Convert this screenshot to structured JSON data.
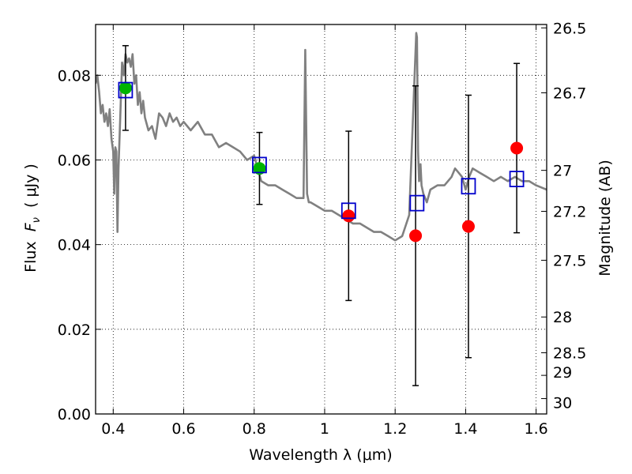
{
  "chart_data": {
    "type": "scatter",
    "title": "",
    "xlabel": "Wavelength  λ (μm)",
    "ylabel": "Flux  F_ν  ( μJy )",
    "ylabel_parts": {
      "prefix": "Flux  ",
      "symbol": "F",
      "subscript": "ν",
      "unit": "  ( μJy )"
    },
    "y2label": "Magnitude (AB)",
    "xlim": [
      0.35,
      1.63
    ],
    "ylim": [
      0.0,
      0.092
    ],
    "grid": true,
    "x_ticks": [
      0.4,
      0.6,
      0.8,
      1.0,
      1.2,
      1.4,
      1.6
    ],
    "x_tick_labels": [
      "0.4",
      "0.6",
      "0.8",
      "1",
      "1.2",
      "1.4",
      "1.6"
    ],
    "y_ticks": [
      0.0,
      0.02,
      0.04,
      0.06,
      0.08
    ],
    "y_tick_labels": [
      "0.00",
      "0.02",
      "0.04",
      "0.06",
      "0.08"
    ],
    "mag_ticks": [
      26.5,
      26.7,
      27,
      27.2,
      27.5,
      28,
      28.5,
      29,
      30
    ],
    "mag_tick_labels": [
      "26.5",
      "26.7",
      "27",
      "27.2",
      "27.5",
      "28",
      "28.5",
      "29",
      "30"
    ],
    "series": [
      {
        "name": "model_sed",
        "style": "line",
        "color": "#808080",
        "x": [
          0.35,
          0.355,
          0.36,
          0.365,
          0.37,
          0.375,
          0.38,
          0.385,
          0.39,
          0.395,
          0.4,
          0.403,
          0.406,
          0.409,
          0.412,
          0.415,
          0.42,
          0.425,
          0.43,
          0.435,
          0.44,
          0.445,
          0.45,
          0.455,
          0.46,
          0.465,
          0.47,
          0.475,
          0.48,
          0.485,
          0.49,
          0.5,
          0.51,
          0.52,
          0.53,
          0.54,
          0.55,
          0.56,
          0.57,
          0.58,
          0.59,
          0.6,
          0.62,
          0.64,
          0.66,
          0.68,
          0.7,
          0.72,
          0.74,
          0.76,
          0.78,
          0.8,
          0.82,
          0.84,
          0.86,
          0.88,
          0.9,
          0.92,
          0.94,
          0.945,
          0.95,
          0.955,
          0.96,
          0.98,
          1.0,
          1.02,
          1.04,
          1.06,
          1.08,
          1.1,
          1.12,
          1.14,
          1.16,
          1.18,
          1.2,
          1.22,
          1.24,
          1.26,
          1.262,
          1.265,
          1.268,
          1.272,
          1.275,
          1.28,
          1.29,
          1.3,
          1.32,
          1.34,
          1.36,
          1.37,
          1.38,
          1.39,
          1.4,
          1.41,
          1.42,
          1.44,
          1.46,
          1.48,
          1.5,
          1.52,
          1.54,
          1.56,
          1.58,
          1.6,
          1.63
        ],
        "y": [
          0.078,
          0.08,
          0.076,
          0.071,
          0.073,
          0.069,
          0.071,
          0.068,
          0.072,
          0.065,
          0.062,
          0.052,
          0.063,
          0.062,
          0.043,
          0.058,
          0.07,
          0.083,
          0.08,
          0.085,
          0.083,
          0.084,
          0.082,
          0.085,
          0.078,
          0.08,
          0.073,
          0.076,
          0.071,
          0.074,
          0.07,
          0.067,
          0.068,
          0.065,
          0.071,
          0.07,
          0.068,
          0.071,
          0.069,
          0.07,
          0.068,
          0.069,
          0.067,
          0.069,
          0.066,
          0.066,
          0.063,
          0.064,
          0.063,
          0.062,
          0.06,
          0.061,
          0.055,
          0.054,
          0.054,
          0.053,
          0.052,
          0.051,
          0.051,
          0.086,
          0.052,
          0.05,
          0.05,
          0.049,
          0.048,
          0.048,
          0.047,
          0.046,
          0.045,
          0.045,
          0.044,
          0.043,
          0.043,
          0.042,
          0.041,
          0.042,
          0.047,
          0.09,
          0.089,
          0.062,
          0.055,
          0.059,
          0.054,
          0.052,
          0.05,
          0.053,
          0.054,
          0.054,
          0.056,
          0.058,
          0.057,
          0.056,
          0.053,
          0.056,
          0.058,
          0.057,
          0.056,
          0.055,
          0.056,
          0.055,
          0.056,
          0.055,
          0.055,
          0.054,
          0.053
        ]
      },
      {
        "name": "observed_optical",
        "style": "marker",
        "marker": "circle",
        "color": "#00b400",
        "x": [
          0.435,
          0.815
        ],
        "y": [
          0.077,
          0.058
        ],
        "err": [
          0.01,
          0.0085
        ]
      },
      {
        "name": "observed_nir",
        "style": "marker",
        "marker": "circle",
        "color": "#ff0000",
        "x": [
          1.068,
          1.258,
          1.408,
          1.545
        ],
        "y": [
          0.0468,
          0.0421,
          0.0443,
          0.0628
        ],
        "err": [
          0.02,
          0.0354,
          0.031,
          0.02
        ]
      },
      {
        "name": "model_photometry",
        "style": "marker",
        "marker": "square",
        "color": "#0000cc",
        "x": [
          0.435,
          0.815,
          1.068,
          1.262,
          1.408,
          1.545
        ],
        "y": [
          0.0765,
          0.0588,
          0.048,
          0.0498,
          0.0538,
          0.0555
        ]
      }
    ]
  }
}
